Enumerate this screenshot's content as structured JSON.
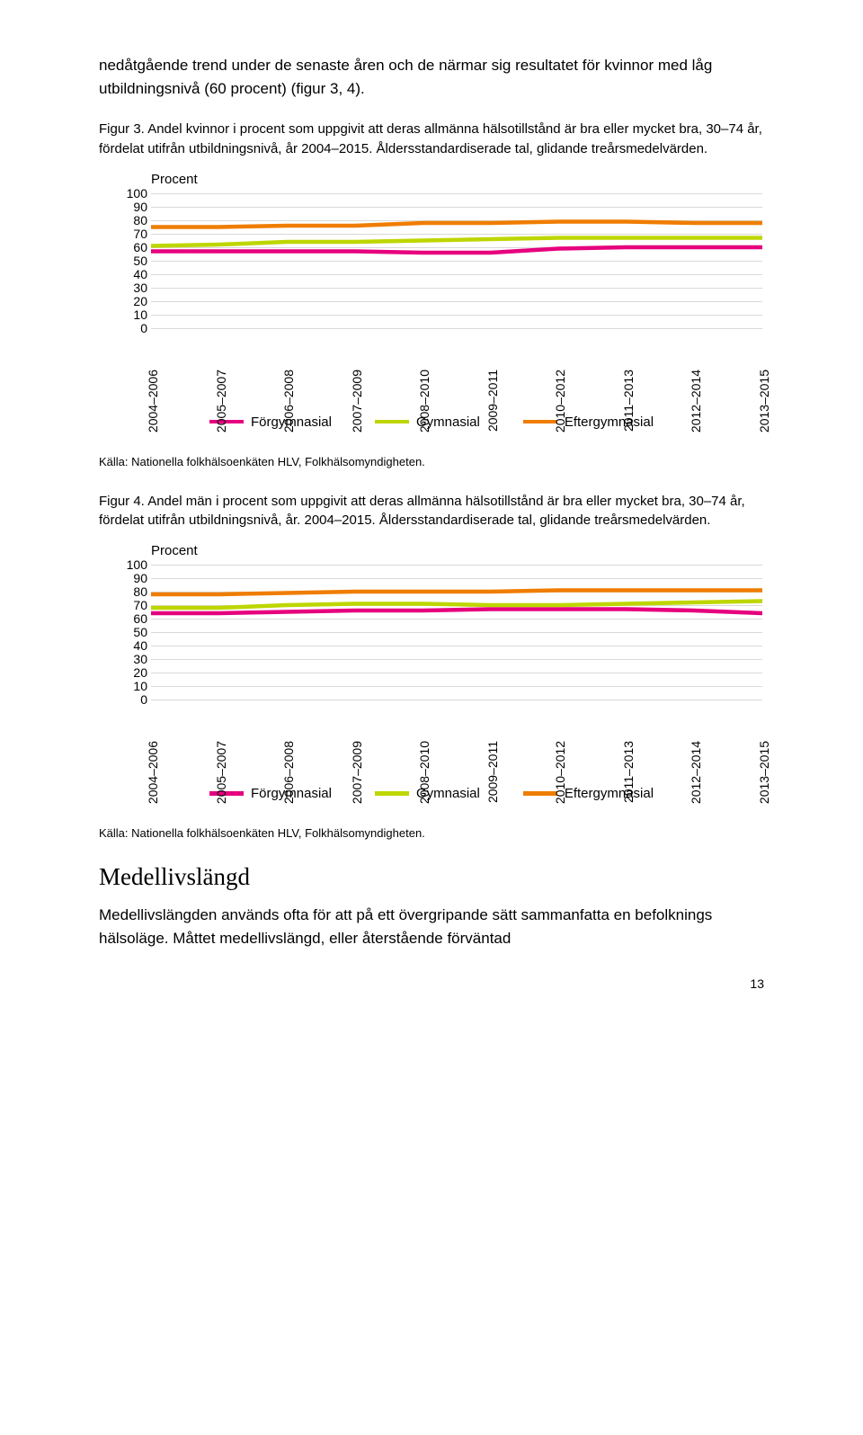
{
  "intro_text": "nedåtgående trend under de senaste åren och de närmar sig resultatet för kvinnor med låg utbildningsnivå (60 procent) (figur 3, 4).",
  "fig3_caption": "Figur 3. Andel kvinnor i procent som uppgivit att deras allmänna hälsotillstånd är bra eller mycket bra, 30–74 år, fördelat utifrån utbildningsnivå, år 2004–2015. Åldersstandardiserade tal, glidande treårsmedelvärden.",
  "fig4_caption": "Figur 4. Andel män i procent som uppgivit att deras allmänna hälsotillstånd är bra eller mycket bra, 30–74 år, fördelat utifrån utbildningsnivå, år. 2004–2015. Åldersstandardiserade tal, glidande treårsmedelvärden.",
  "chart_common": {
    "ylabel": "Procent",
    "ylim": [
      0,
      100
    ],
    "ytick_step": 10,
    "categories": [
      "2004–2006",
      "2005–2007",
      "2006–2008",
      "2007–2009",
      "2008–2010",
      "2009–2011",
      "2010–2012",
      "2011–2013",
      "2012–2014",
      "2013–2015"
    ],
    "grid_color": "#d9d9d9",
    "background_color": "#ffffff",
    "line_width": 4.5,
    "series_labels": [
      "Förgymnasial",
      "Gymnasial",
      "Eftergymnasial"
    ],
    "series_colors": [
      "#e6007e",
      "#bed600",
      "#ef7d00"
    ]
  },
  "fig3_series": {
    "Förgymnasial": [
      57,
      57,
      57,
      57,
      56,
      56,
      59,
      60,
      60,
      60
    ],
    "Gymnasial": [
      61,
      62,
      64,
      64,
      65,
      66,
      67,
      67,
      67,
      67
    ],
    "Eftergymnasial": [
      75,
      75,
      76,
      76,
      78,
      78,
      79,
      79,
      78,
      78
    ]
  },
  "fig4_series": {
    "Förgymnasial": [
      64,
      64,
      65,
      66,
      66,
      67,
      67,
      67,
      66,
      64
    ],
    "Gymnasial": [
      68,
      68,
      70,
      71,
      71,
      70,
      70,
      71,
      72,
      73
    ],
    "Eftergymnasial": [
      78,
      78,
      79,
      80,
      80,
      80,
      81,
      81,
      81,
      81
    ]
  },
  "source": "Källa: Nationella folkhälsoenkäten HLV, Folkhälsomyndigheten.",
  "h2": "Medellivslängd",
  "closing_text": "Medellivslängden används ofta för att på ett övergripande sätt sammanfatta en befolknings hälsoläge. Måttet medellivslängd, eller återstående förväntad",
  "page_number": "13"
}
